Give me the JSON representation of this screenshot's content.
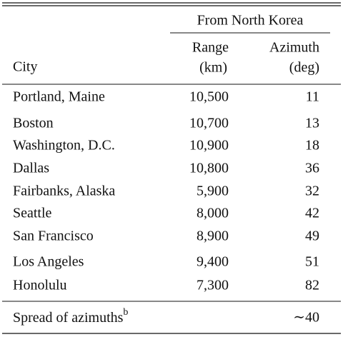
{
  "table": {
    "group_header": "From North Korea",
    "columns": [
      [
        "City"
      ],
      [
        "Range",
        "(km)"
      ],
      [
        "Azimuth",
        "(deg)"
      ]
    ],
    "rows": [
      [
        "Portland, Maine",
        "10,500",
        "11"
      ],
      [
        "Boston",
        "10,700",
        "13"
      ],
      [
        "Washington, D.C.",
        "10,900",
        "18"
      ],
      [
        "Dallas",
        "10,800",
        "36"
      ],
      [
        "Fairbanks, Alaska",
        "5,900",
        "32"
      ],
      [
        "Seattle",
        "8,000",
        "42"
      ],
      [
        "San Francisco",
        "8,900",
        "49"
      ],
      [
        "Los Angeles",
        "9,400",
        "51"
      ],
      [
        "Honolulu",
        "7,300",
        "82"
      ]
    ],
    "footer": {
      "label": "Spread of azimuths",
      "note": "b",
      "value": "∼40"
    }
  }
}
